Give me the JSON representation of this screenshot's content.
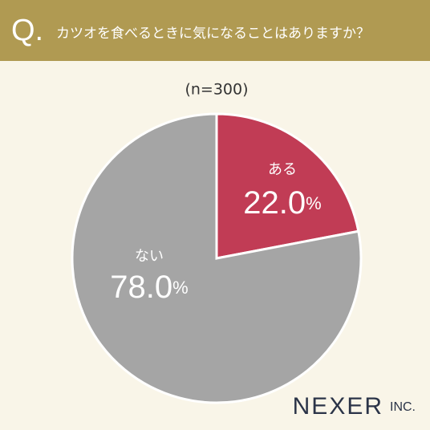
{
  "chart_data": {
    "type": "pie",
    "question_mark": "Q.",
    "title": "カツオを食べるときに気になることはありますか？",
    "subtitle": "(n=300)",
    "categories": [
      "ある",
      "ない"
    ],
    "values": [
      22.0,
      78.0
    ],
    "value_labels": [
      "22.0%",
      "78.0%"
    ],
    "colors": [
      "#c13c55",
      "#a5a5a5"
    ],
    "brand": {
      "name": "NEXER",
      "suffix": "INC."
    }
  }
}
